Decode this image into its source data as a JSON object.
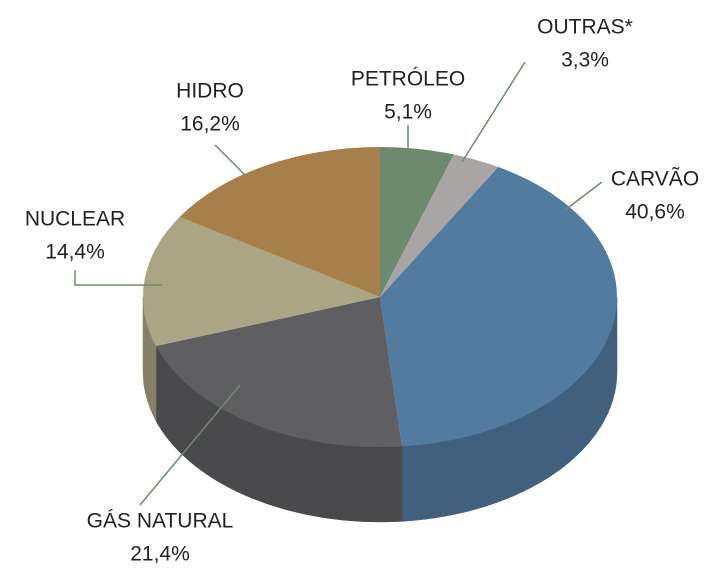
{
  "chart_data": {
    "type": "pie",
    "categories": [
      "PETRÓLEO",
      "OUTRAS*",
      "CARVÃO",
      "GÁS NATURAL",
      "NUCLEAR",
      "HIDRO"
    ],
    "values": [
      5.1,
      3.3,
      40.6,
      21.4,
      14.4,
      16.2
    ],
    "value_labels": [
      "5,1%",
      "3,3%",
      "40,6%",
      "21,4%",
      "14,4%",
      "16,2%"
    ],
    "colors": [
      "#6e8a6e",
      "#aaa5a5",
      "#527ba0",
      "#5f5f62",
      "#a9a585",
      "#a77f4b"
    ]
  }
}
